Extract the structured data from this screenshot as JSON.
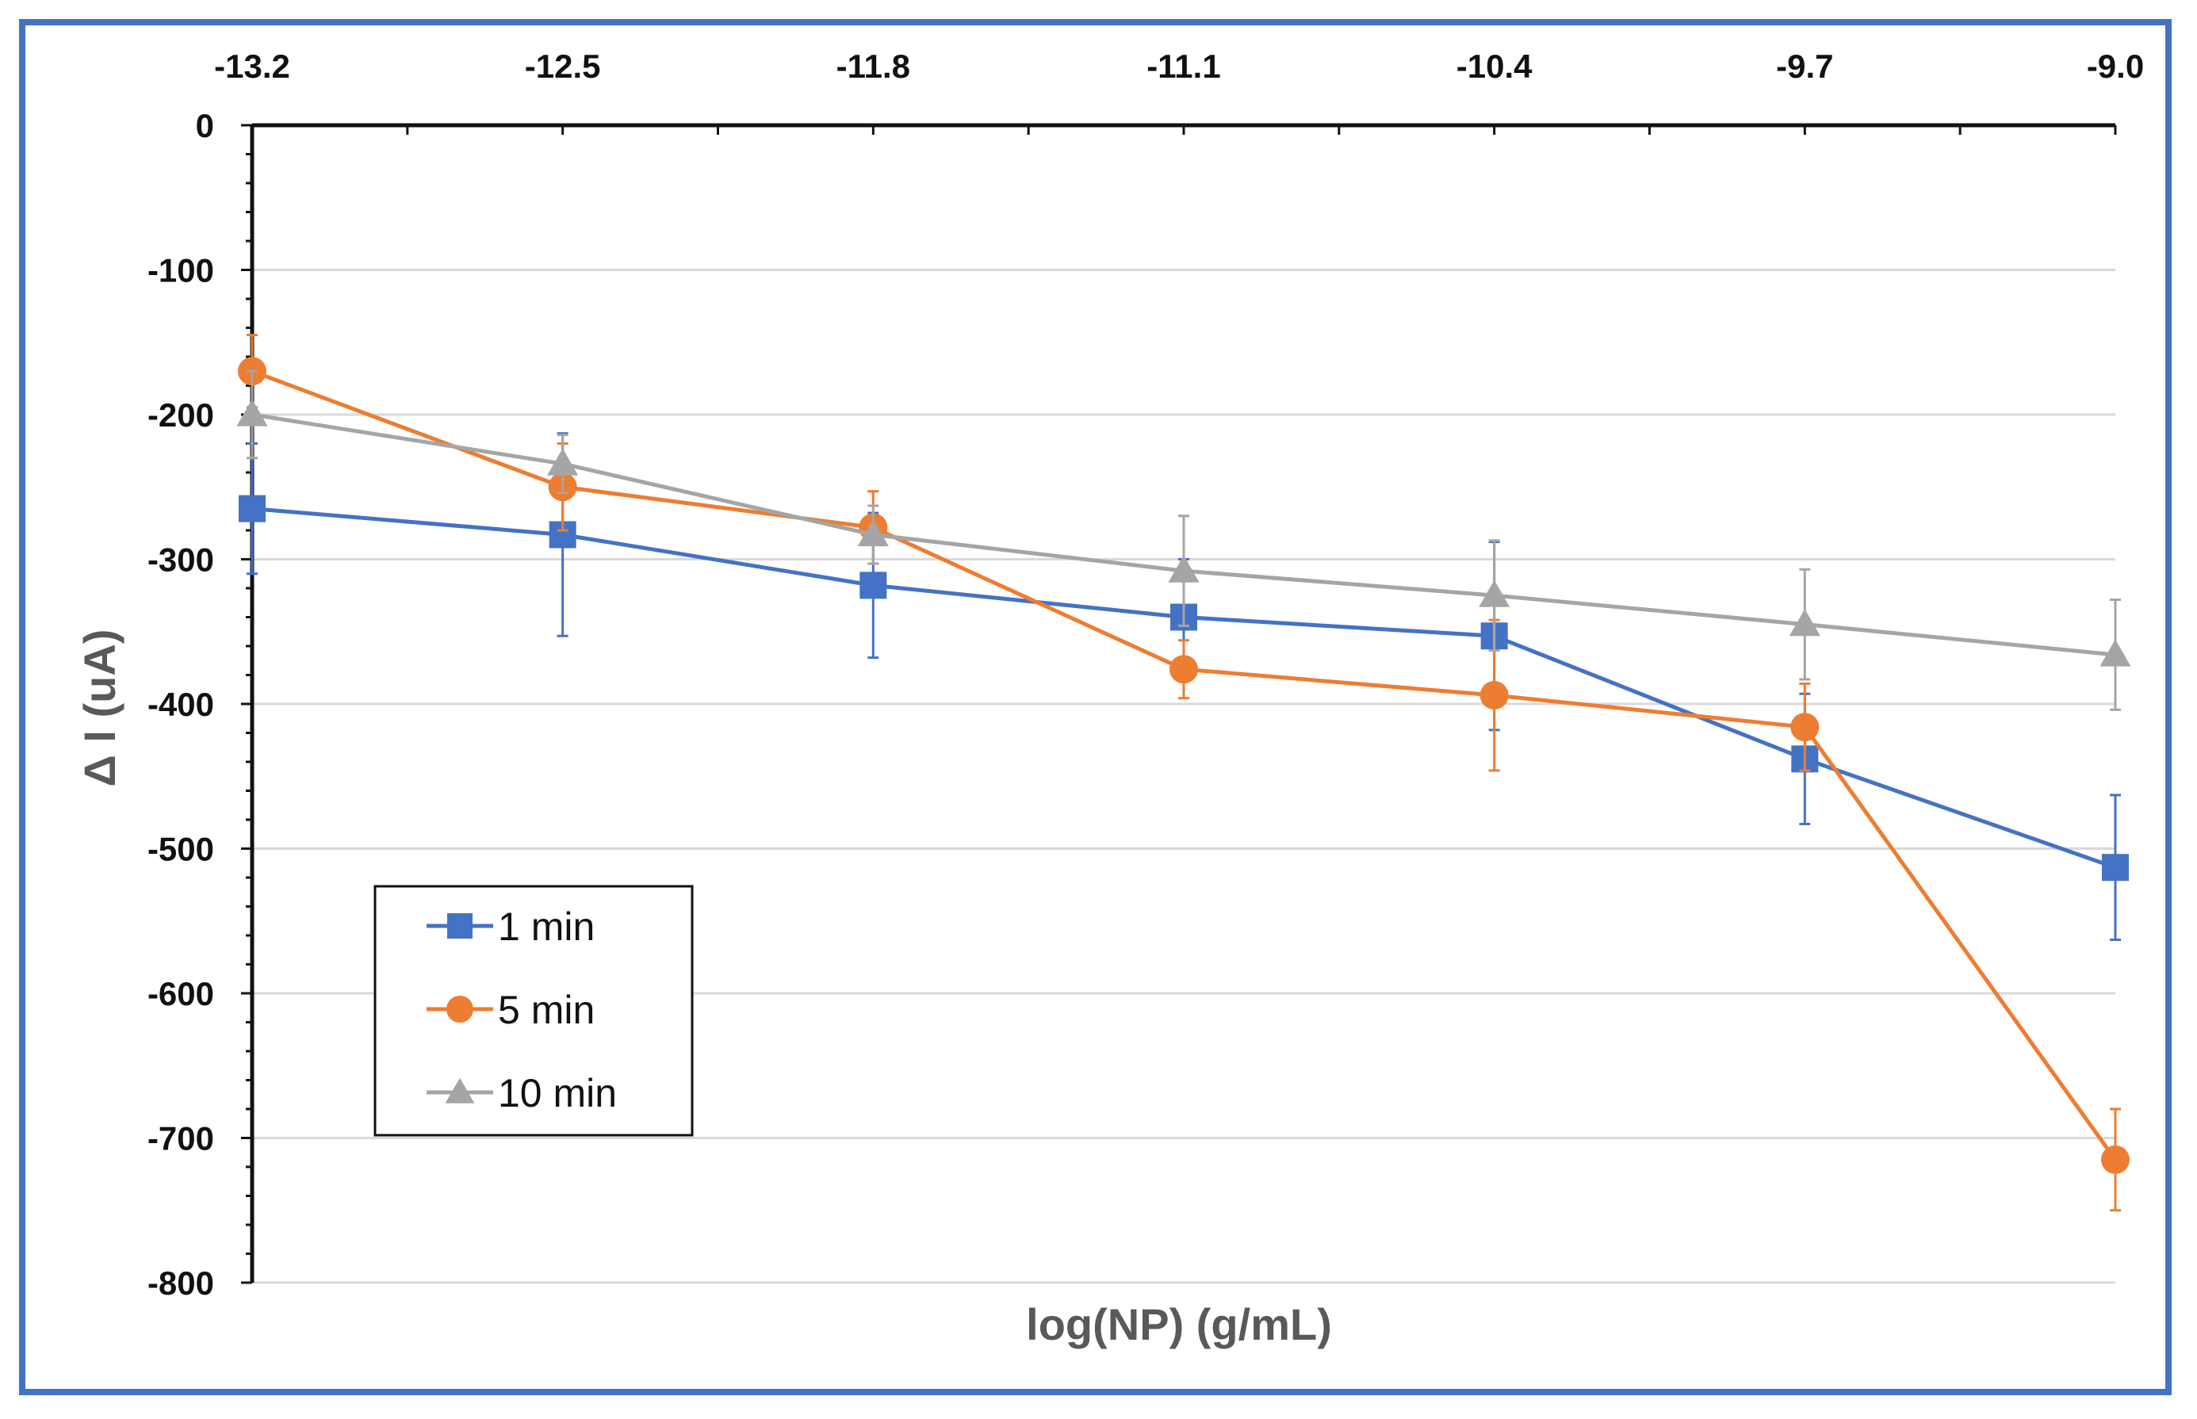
{
  "chart_data": {
    "type": "line",
    "title": "",
    "xlabel": "log(NP) (g/mL)",
    "ylabel": "Δ I (uA)",
    "x": [
      -13.2,
      -12.5,
      -11.8,
      -11.1,
      -10.4,
      -9.7,
      -9.0
    ],
    "x_tick_labels": [
      "-13.2",
      "-12.5",
      "-11.8",
      "-11.1",
      "-10.4",
      "-9.7",
      "-9.0"
    ],
    "xlim": [
      -13.2,
      -9.0
    ],
    "x_axis_position": "top",
    "ylim": [
      -800,
      0
    ],
    "y_ticks": [
      0,
      -100,
      -200,
      -300,
      -400,
      -500,
      -600,
      -700,
      -800
    ],
    "y_tick_labels": [
      "0",
      "-100",
      "-200",
      "-300",
      "-400",
      "-500",
      "-600",
      "-700",
      "-800"
    ],
    "grid": true,
    "legend_position": "bottom-left",
    "series": [
      {
        "name": "1 min",
        "color": "#4472c4",
        "marker": "square",
        "values": [
          -265,
          -283,
          -318,
          -340,
          -353,
          -438,
          -513
        ],
        "errors": [
          45,
          70,
          50,
          40,
          65,
          45,
          50
        ]
      },
      {
        "name": "5 min",
        "color": "#ed7d31",
        "marker": "circle",
        "values": [
          -170,
          -250,
          -278,
          -376,
          -394,
          -416,
          -715
        ],
        "errors": [
          25,
          30,
          25,
          20,
          52,
          30,
          35
        ]
      },
      {
        "name": "10 min",
        "color": "#a5a5a5",
        "marker": "triangle",
        "values": [
          -200,
          -234,
          -283,
          -308,
          -325,
          -345,
          -366
        ],
        "errors": [
          30,
          20,
          20,
          38,
          38,
          38,
          38
        ]
      }
    ]
  }
}
